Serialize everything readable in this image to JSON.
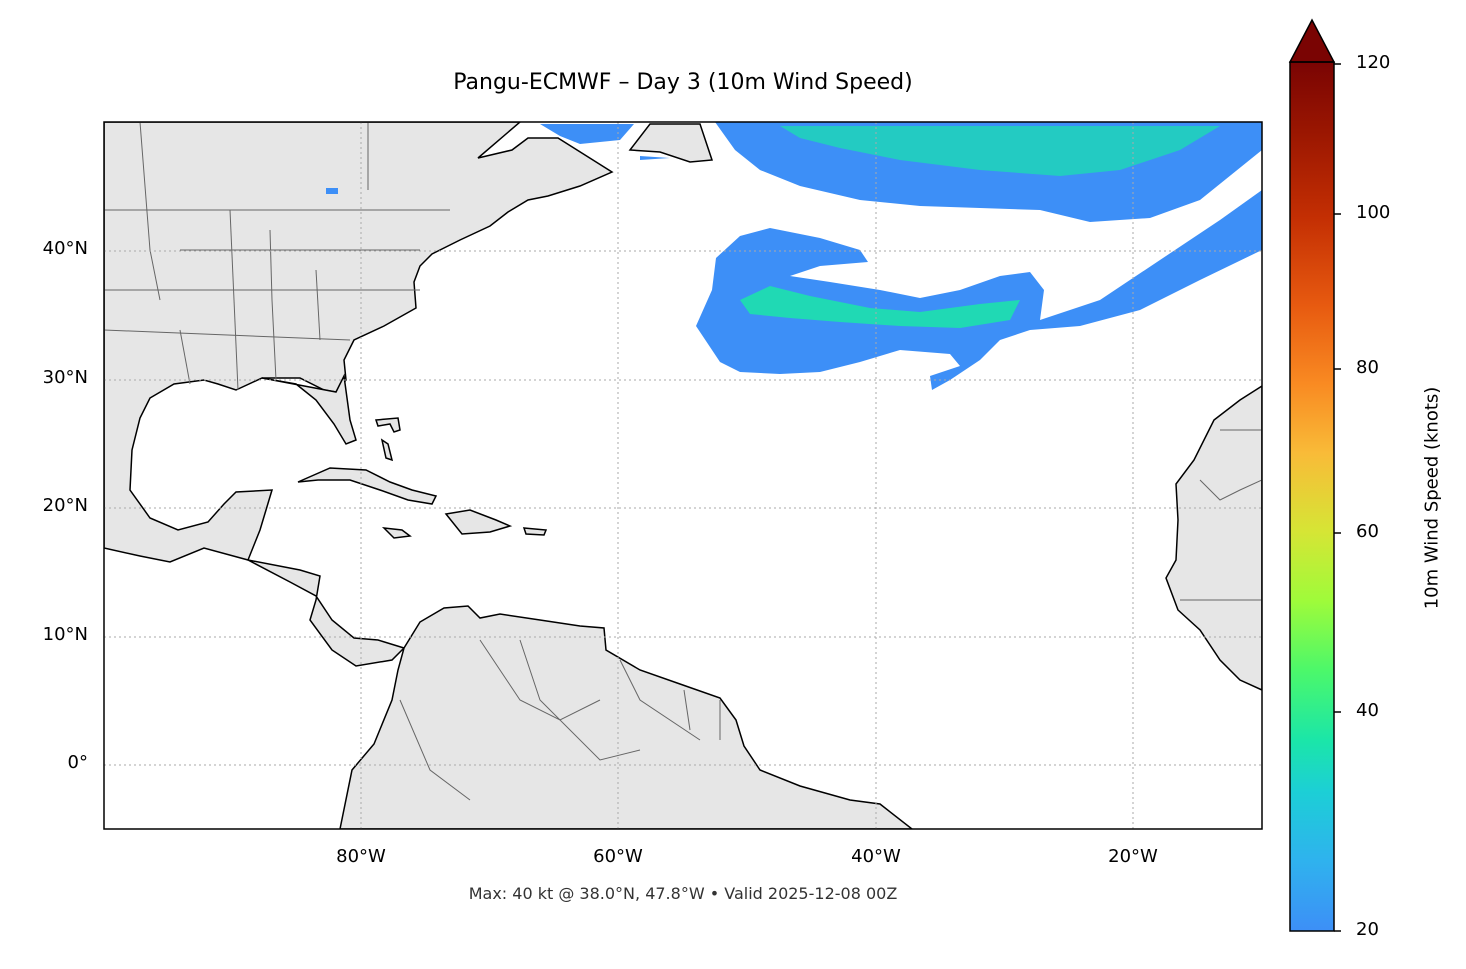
{
  "map": {
    "title": "Pangu-ECMWF – Day 3 (10m Wind Speed)",
    "footer": "Max: 40 kt @ 38.0°N, 47.8°W • Valid 2025-12-08 00Z",
    "extent": {
      "lon": [
        -100,
        -10
      ],
      "lat": [
        -5,
        50
      ]
    },
    "land_color": "#e6e6e6",
    "gridlines": "dotted"
  },
  "lat_labels": [
    "40°N",
    "30°N",
    "20°N",
    "10°N",
    "0°"
  ],
  "lon_labels": [
    "80°W",
    "60°W",
    "40°W",
    "20°W"
  ],
  "colorbar": {
    "label": "10m Wind Speed (knots)",
    "ticks": [
      "120",
      "100",
      "80",
      "60",
      "40",
      "20"
    ],
    "range": [
      20,
      120
    ],
    "extend": "max",
    "colormap": "turbo"
  }
}
